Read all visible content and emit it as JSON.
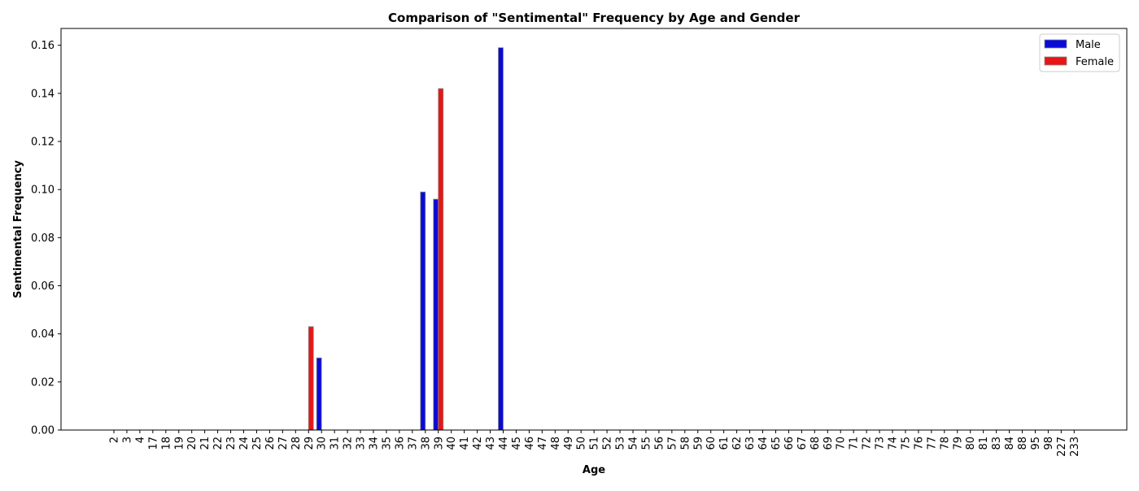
{
  "chart_data": {
    "type": "bar",
    "title": "Comparison of \"Sentimental\" Frequency by Age and Gender",
    "xlabel": "Age",
    "ylabel": "Sentimental Frequency",
    "ylim": [
      0,
      0.167
    ],
    "yticks": [
      0.0,
      0.02,
      0.04,
      0.06,
      0.08,
      0.1,
      0.12,
      0.14,
      0.16
    ],
    "ytick_labels": [
      "0.00",
      "0.02",
      "0.04",
      "0.06",
      "0.08",
      "0.10",
      "0.12",
      "0.14",
      "0.16"
    ],
    "grid": false,
    "legend_position": "top-right",
    "categories": [
      "2",
      "3",
      "4",
      "17",
      "18",
      "19",
      "20",
      "21",
      "22",
      "23",
      "24",
      "25",
      "26",
      "27",
      "28",
      "29",
      "30",
      "31",
      "32",
      "33",
      "34",
      "35",
      "36",
      "37",
      "38",
      "39",
      "40",
      "41",
      "42",
      "43",
      "44",
      "45",
      "46",
      "47",
      "48",
      "49",
      "50",
      "51",
      "52",
      "53",
      "54",
      "55",
      "56",
      "57",
      "58",
      "59",
      "60",
      "61",
      "62",
      "63",
      "64",
      "65",
      "66",
      "67",
      "68",
      "69",
      "70",
      "71",
      "72",
      "73",
      "74",
      "75",
      "76",
      "77",
      "78",
      "79",
      "80",
      "81",
      "83",
      "84",
      "88",
      "95",
      "98",
      "227",
      "233"
    ],
    "series": [
      {
        "name": "Male",
        "color": "#0a0ad6",
        "values": [
          0,
          0,
          0,
          0,
          0,
          0,
          0,
          0,
          0,
          0,
          0,
          0,
          0,
          0,
          0,
          0,
          0.03,
          0,
          0,
          0,
          0,
          0,
          0,
          0,
          0.099,
          0.096,
          0,
          0,
          0,
          0,
          0.159,
          0,
          0,
          0,
          0,
          0,
          0,
          0,
          0,
          0,
          0,
          0,
          0,
          0,
          0,
          0,
          0,
          0,
          0,
          0,
          0,
          0,
          0,
          0,
          0,
          0,
          0,
          0,
          0,
          0,
          0,
          0,
          0,
          0,
          0,
          0,
          0,
          0,
          0,
          0,
          0,
          0,
          0,
          0,
          0
        ]
      },
      {
        "name": "Female",
        "color": "#e81515",
        "values": [
          0,
          0,
          0,
          0,
          0,
          0,
          0,
          0,
          0,
          0,
          0,
          0,
          0,
          0,
          0,
          0.043,
          0,
          0,
          0,
          0,
          0,
          0,
          0,
          0,
          0,
          0.142,
          0,
          0,
          0,
          0,
          0,
          0,
          0,
          0,
          0,
          0,
          0,
          0,
          0,
          0,
          0,
          0,
          0,
          0,
          0,
          0,
          0,
          0,
          0,
          0,
          0,
          0,
          0,
          0,
          0,
          0,
          0,
          0,
          0,
          0,
          0,
          0,
          0,
          0,
          0,
          0,
          0,
          0,
          0,
          0,
          0,
          0,
          0,
          0,
          0
        ]
      }
    ]
  }
}
